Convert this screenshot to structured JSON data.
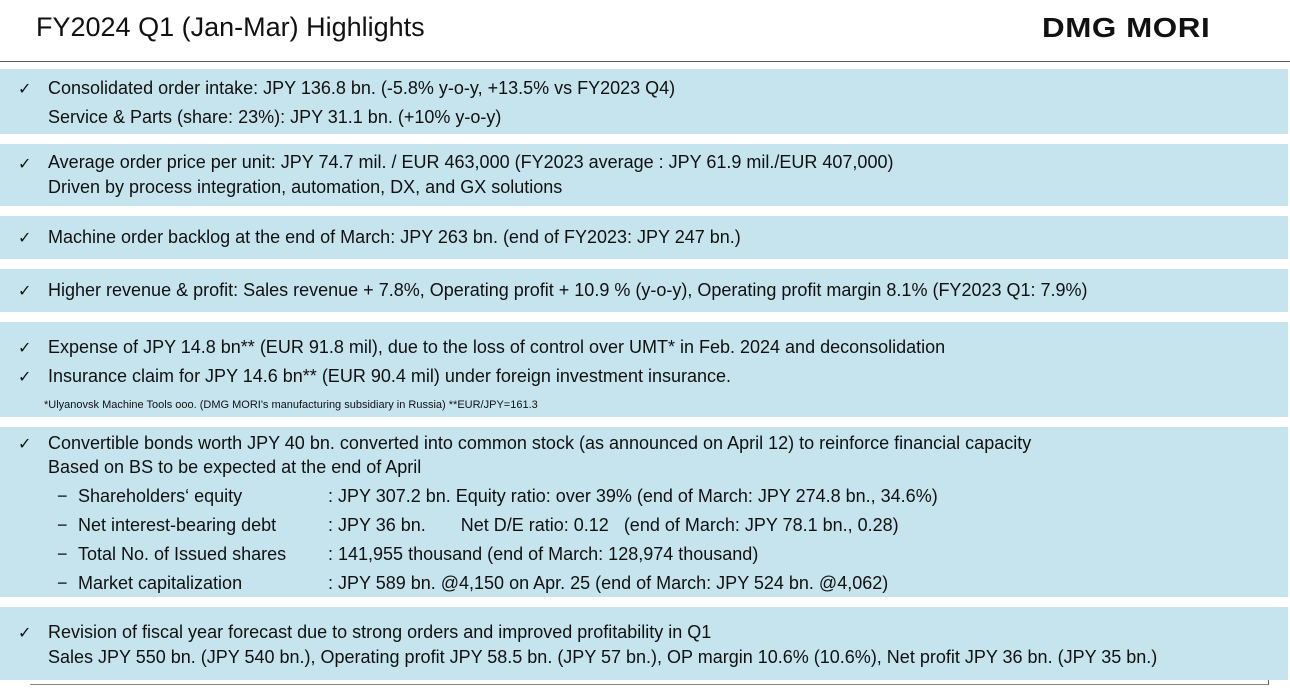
{
  "header": {
    "title": "FY2024 Q1 (Jan-Mar) Highlights",
    "logo_text": "DMG MORI"
  },
  "check_symbol": "✓",
  "dash_symbol": "−",
  "sections": {
    "orders": {
      "line1": "Consolidated order intake: JPY 136.8 bn. (-5.8% y-o-y, +13.5% vs FY2023 Q4)",
      "line2": "Service & Parts (share: 23%): JPY 31.1 bn. (+10% y-o-y)"
    },
    "price": {
      "line1": "Average order price per unit: JPY 74.7 mil. / EUR 463,000 (FY2023 average : JPY 61.9 mil./EUR 407,000)",
      "line2": "Driven by process integration, automation, DX, and GX solutions"
    },
    "backlog": {
      "line1": "Machine order backlog at the end of March: JPY 263 bn. (end of FY2023: JPY 247 bn.)"
    },
    "revenue": {
      "line1": "Higher revenue & profit: Sales revenue + 7.8%, Operating profit + 10.9 % (y-o-y), Operating profit margin 8.1% (FY2023 Q1: 7.9%)"
    },
    "umt": {
      "line1": "Expense of JPY 14.8 bn** (EUR 91.8 mil), due to the loss of control over UMT* in Feb. 2024 and deconsolidation",
      "line2": "Insurance claim for JPY 14.6 bn** (EUR 90.4 mil) under foreign investment insurance.",
      "note": "*Ulyanovsk Machine Tools ooo. (DMG MORI's manufacturing subsidiary in Russia)  **EUR/JPY=161.3"
    },
    "bonds": {
      "line1": "Convertible bonds worth JPY 40 bn. converted into common stock  (as announced on April 12) to reinforce financial capacity",
      "line2": "Based on BS to be expected at the end of April",
      "items": [
        {
          "label": "Shareholders‘ equity",
          "value": ": JPY 307.2 bn.  Equity ratio: over 39%  (end of March: JPY 274.8 bn., 34.6%)"
        },
        {
          "label": "Net interest-bearing debt",
          "value": ": JPY 36 bn.       Net D/E ratio: 0.12   (end of March: JPY 78.1 bn., 0.28)"
        },
        {
          "label": "Total No. of Issued shares",
          "value": ": 141,955 thousand (end of March: 128,974 thousand)"
        },
        {
          "label": "Market capitalization",
          "value": ": JPY 589 bn. @4,150 on Apr. 25 (end of March: JPY 524 bn. @4,062)"
        }
      ]
    },
    "forecast": {
      "line1": "Revision of fiscal year forecast due to strong orders and improved profitability in Q1",
      "line2": "Sales JPY 550 bn. (JPY 540 bn.), Operating profit JPY 58.5 bn. (JPY 57 bn.), OP margin 10.6% (10.6%), Net profit JPY 36 bn. (JPY 35 bn.)"
    }
  }
}
